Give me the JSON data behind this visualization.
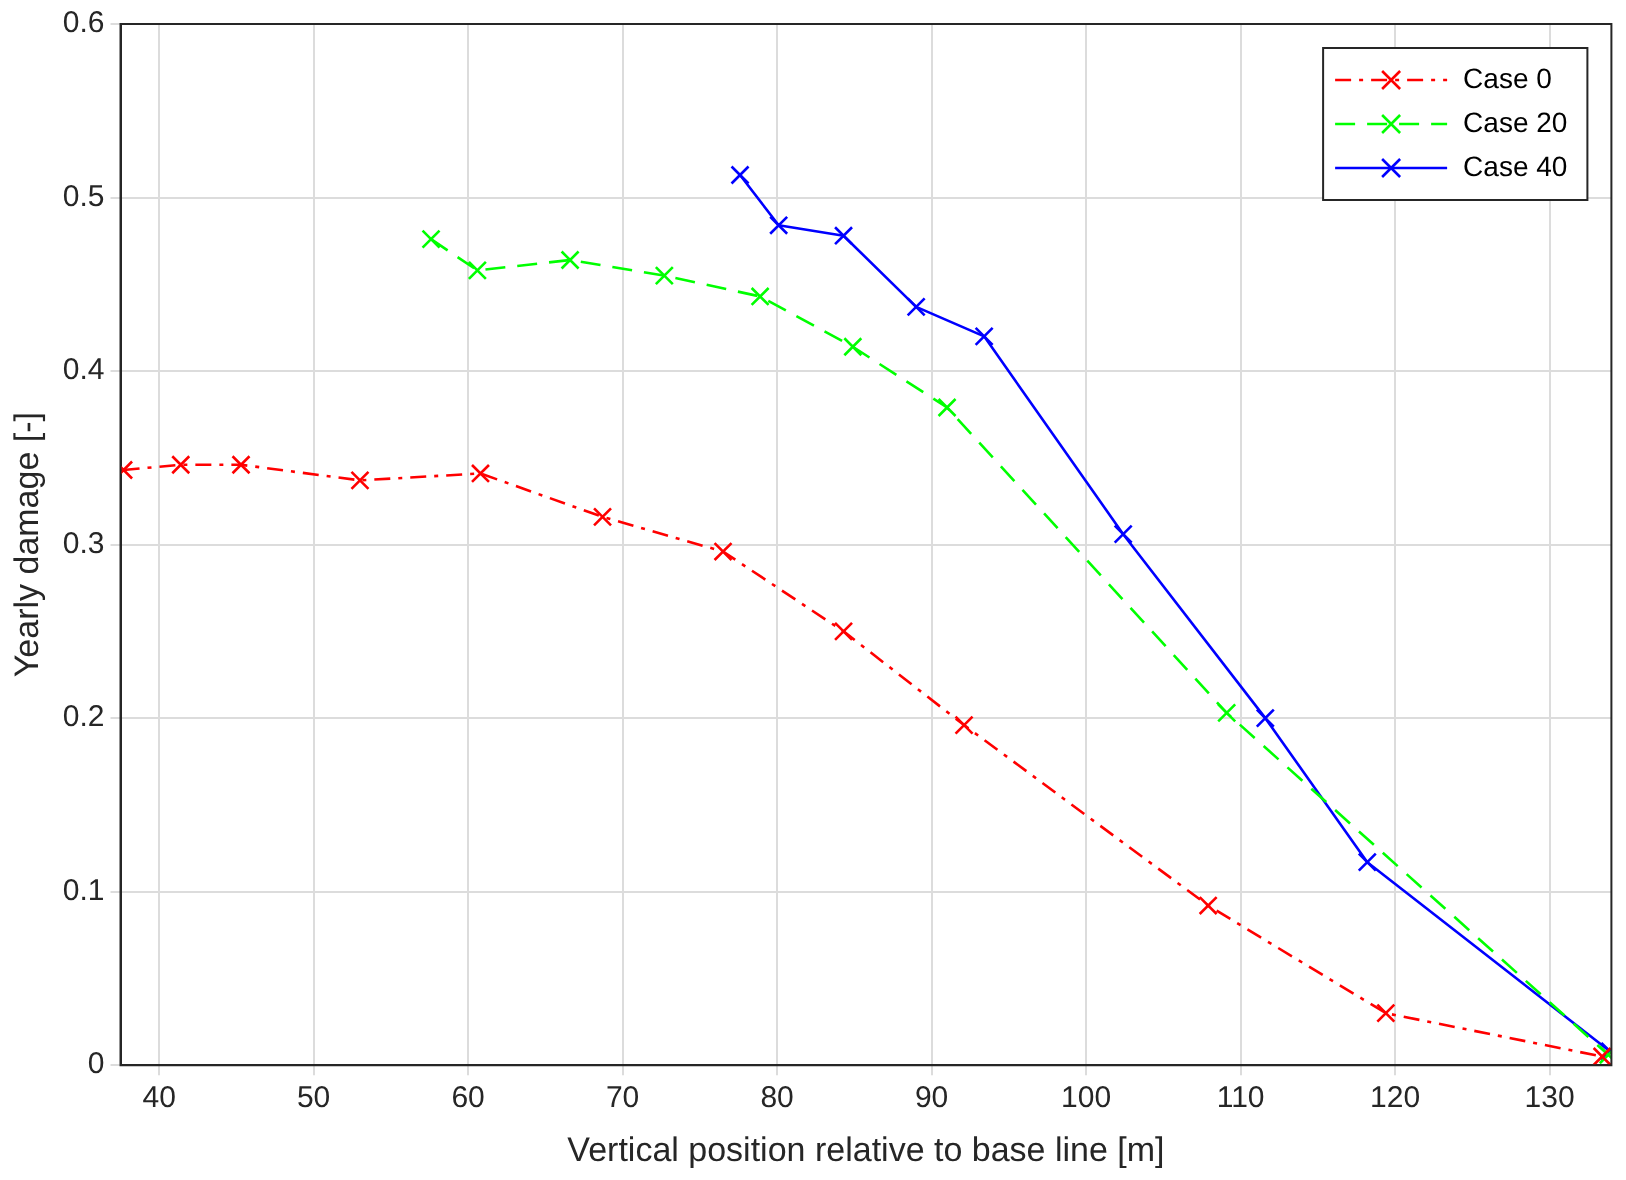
{
  "chart_data": {
    "type": "line",
    "xlabel": "Vertical position relative to base line [m]",
    "ylabel": "Yearly damage [-]",
    "xlim": [
      37.5,
      134
    ],
    "xticks": [
      40,
      50,
      60,
      70,
      80,
      90,
      100,
      110,
      120,
      130
    ],
    "ylim": [
      0,
      0.6
    ],
    "yticks": [
      0,
      0.1,
      0.2,
      0.3,
      0.4,
      0.5,
      0.6
    ],
    "grid": true,
    "legend": "top right",
    "marker": "cross",
    "series": [
      {
        "name": "Case 0",
        "color": "#ff0000",
        "line_style": "dashdot",
        "x": [
          37.7,
          41.4,
          45.3,
          53.0,
          60.8,
          68.7,
          76.5,
          84.3,
          92.1,
          107.9,
          119.4,
          133.4
        ],
        "values": [
          0.343,
          0.346,
          0.346,
          0.337,
          0.341,
          0.316,
          0.296,
          0.25,
          0.196,
          0.092,
          0.03,
          0.005
        ]
      },
      {
        "name": "Case 20",
        "color": "#00ff00",
        "line_style": "dashed",
        "x": [
          57.6,
          60.6,
          66.6,
          72.7,
          78.9,
          84.9,
          91.0,
          109.1,
          133.8
        ],
        "values": [
          0.476,
          0.458,
          0.464,
          0.455,
          0.443,
          0.414,
          0.379,
          0.203,
          0.006
        ]
      },
      {
        "name": "Case 40",
        "color": "#0000ff",
        "line_style": "solid",
        "x": [
          77.6,
          80.1,
          84.3,
          89.0,
          93.4,
          102.4,
          111.6,
          118.2,
          133.9
        ],
        "values": [
          0.513,
          0.484,
          0.478,
          0.437,
          0.42,
          0.306,
          0.2,
          0.117,
          0.008
        ]
      }
    ]
  }
}
